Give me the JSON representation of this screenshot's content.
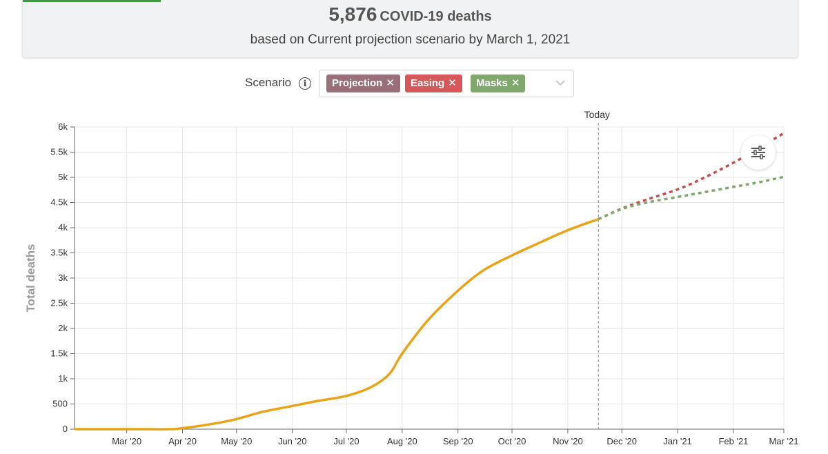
{
  "summary": {
    "count": "5,876",
    "unit": "COVID-19 deaths",
    "subtitle": "based on Current projection scenario by March 1, 2021"
  },
  "scenario": {
    "label": "Scenario",
    "info_icon": "info-icon",
    "chips": [
      {
        "label": "Projection",
        "remove": "✕",
        "color": "#9b6f78"
      },
      {
        "label": "Easing",
        "remove": "✕",
        "color": "#d6585a"
      },
      {
        "label": "Masks",
        "remove": "✕",
        "color": "#80a86c"
      }
    ],
    "dropdown_icon": "chevron-down-icon"
  },
  "controls": {
    "settings_icon": "sliders-icon"
  },
  "chart_data": {
    "type": "line",
    "ylabel": "Total deaths",
    "ylim": [
      0,
      6000
    ],
    "yticks": [
      {
        "value": 0,
        "label": "0"
      },
      {
        "value": 500,
        "label": "500"
      },
      {
        "value": 1000,
        "label": "1k"
      },
      {
        "value": 1500,
        "label": "1.5k"
      },
      {
        "value": 2000,
        "label": "2k"
      },
      {
        "value": 2500,
        "label": "2.5k"
      },
      {
        "value": 3000,
        "label": "3k"
      },
      {
        "value": 3500,
        "label": "3.5k"
      },
      {
        "value": 4000,
        "label": "4k"
      },
      {
        "value": 4500,
        "label": "4.5k"
      },
      {
        "value": 5000,
        "label": "5k"
      },
      {
        "value": 5500,
        "label": "5.5k"
      },
      {
        "value": 6000,
        "label": "6k"
      }
    ],
    "xlim": [
      "2020-02-01",
      "2021-03-01"
    ],
    "xticks": [
      {
        "date": "2020-03-01",
        "label": "Mar '20"
      },
      {
        "date": "2020-04-01",
        "label": "Apr '20"
      },
      {
        "date": "2020-05-01",
        "label": "May '20"
      },
      {
        "date": "2020-06-01",
        "label": "Jun '20"
      },
      {
        "date": "2020-07-01",
        "label": "Jul '20"
      },
      {
        "date": "2020-08-01",
        "label": "Aug '20"
      },
      {
        "date": "2020-09-01",
        "label": "Sep '20"
      },
      {
        "date": "2020-10-01",
        "label": "Oct '20"
      },
      {
        "date": "2020-11-01",
        "label": "Nov '20"
      },
      {
        "date": "2020-12-01",
        "label": "Dec '20"
      },
      {
        "date": "2021-01-01",
        "label": "Jan '21"
      },
      {
        "date": "2021-02-01",
        "label": "Feb '21"
      },
      {
        "date": "2021-03-01",
        "label": "Mar '21"
      }
    ],
    "today": {
      "date": "2020-11-18",
      "label": "Today"
    },
    "grid": true,
    "series": [
      {
        "color": "#e8a317",
        "style": "solid",
        "points": [
          [
            "2020-02-01",
            0
          ],
          [
            "2020-03-01",
            0
          ],
          [
            "2020-03-25",
            0
          ],
          [
            "2020-04-01",
            20
          ],
          [
            "2020-04-15",
            90
          ],
          [
            "2020-05-01",
            200
          ],
          [
            "2020-05-15",
            340
          ],
          [
            "2020-06-01",
            460
          ],
          [
            "2020-06-15",
            560
          ],
          [
            "2020-07-01",
            660
          ],
          [
            "2020-07-15",
            840
          ],
          [
            "2020-07-25",
            1100
          ],
          [
            "2020-08-01",
            1500
          ],
          [
            "2020-08-15",
            2150
          ],
          [
            "2020-09-01",
            2750
          ],
          [
            "2020-09-15",
            3150
          ],
          [
            "2020-10-01",
            3450
          ],
          [
            "2020-10-15",
            3680
          ],
          [
            "2020-11-01",
            3950
          ],
          [
            "2020-11-18",
            4170
          ]
        ]
      },
      {
        "color": "#c1504d",
        "style": "dashed",
        "points": [
          [
            "2020-11-18",
            4170
          ],
          [
            "2020-12-01",
            4380
          ],
          [
            "2020-12-15",
            4560
          ],
          [
            "2021-01-01",
            4760
          ],
          [
            "2021-01-15",
            4980
          ],
          [
            "2021-02-01",
            5290
          ],
          [
            "2021-02-15",
            5580
          ],
          [
            "2021-03-01",
            5876
          ]
        ]
      },
      {
        "color": "#80a86c",
        "style": "dashed",
        "points": [
          [
            "2020-11-18",
            4170
          ],
          [
            "2020-12-01",
            4370
          ],
          [
            "2020-12-15",
            4500
          ],
          [
            "2021-01-01",
            4610
          ],
          [
            "2021-01-15",
            4700
          ],
          [
            "2021-02-01",
            4810
          ],
          [
            "2021-02-15",
            4900
          ],
          [
            "2021-03-01",
            5010
          ]
        ]
      }
    ]
  }
}
